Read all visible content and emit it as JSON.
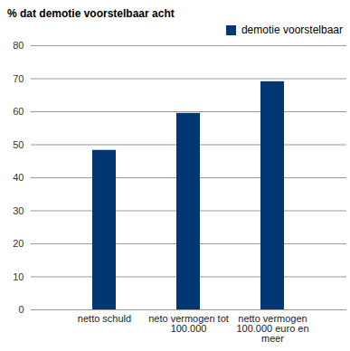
{
  "chart_data": {
    "type": "bar",
    "title": "% dat demotie voorstelbaar acht",
    "categories": [
      "netto schuld",
      "neto vermogen tot 100.000",
      "netto vermogen 100.000 euro en meer"
    ],
    "series": [
      {
        "name": "demotie voorstelbaar",
        "color": "#003671",
        "values": [
          48.3,
          59.5,
          69.1
        ]
      }
    ],
    "ylim": [
      0,
      80
    ],
    "yticks": [
      0,
      10,
      20,
      30,
      40,
      50,
      60,
      70,
      80
    ],
    "grid": true,
    "legend": "top-right"
  }
}
